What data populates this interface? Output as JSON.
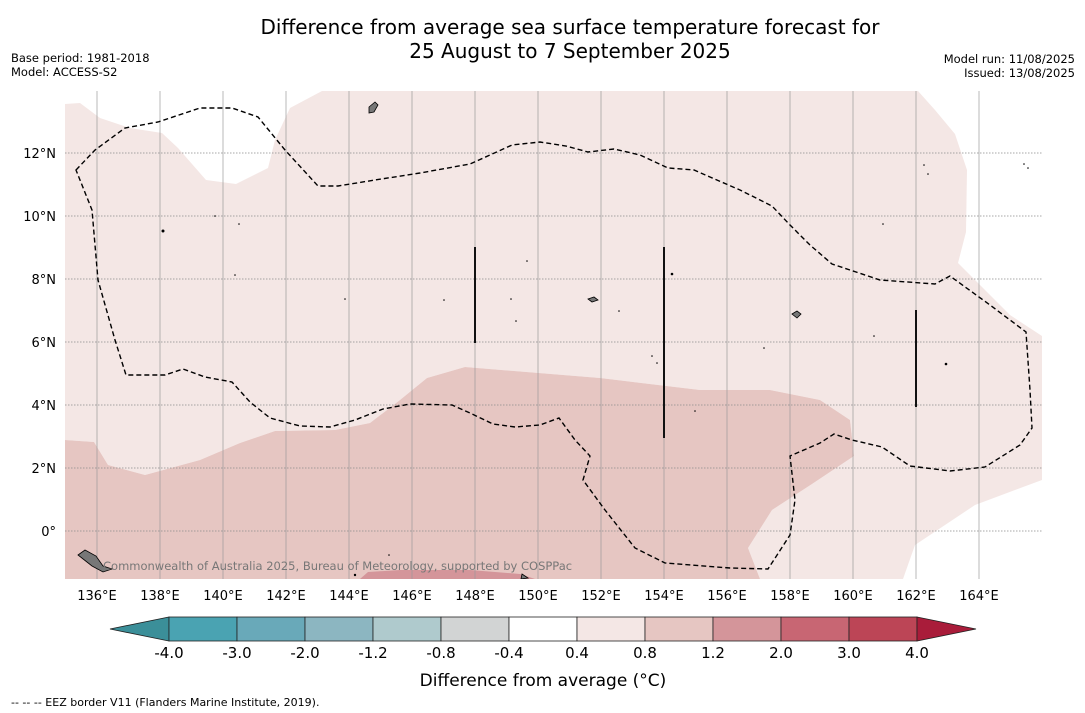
{
  "title_line1": "Difference from average sea surface temperature forecast for",
  "title_line2": "25 August to 7 September 2025",
  "base_period": "Base period: 1981-2018",
  "model": "Model: ACCESS-S2",
  "model_run": "Model run: 11/08/2025",
  "issued": "Issued: 13/08/2025",
  "copyright": "Commonwealth of Australia 2025, Bureau of Meteorology, supported by COSPPac",
  "footer_legend": "--  --  -- EEZ border V11 (Flanders Marine Institute, 2019).",
  "lon_labels": [
    "136°E",
    "138°E",
    "140°E",
    "142°E",
    "144°E",
    "146°E",
    "148°E",
    "150°E",
    "152°E",
    "154°E",
    "156°E",
    "158°E",
    "160°E",
    "162°E",
    "164°E"
  ],
  "lat_labels": [
    "12°N",
    "10°N",
    "8°N",
    "6°N",
    "4°N",
    "2°N",
    "0°"
  ],
  "colorbar": {
    "title": "Difference from average (°C)",
    "ticks": [
      "-4.0",
      "-3.0",
      "-2.0",
      "-1.2",
      "-0.8",
      "-0.4",
      "0.4",
      "0.8",
      "1.2",
      "2.0",
      "3.0",
      "4.0"
    ],
    "colors": [
      "#3b8f99",
      "#4aa3b2",
      "#69a9b9",
      "#8cb6c1",
      "#afcacd",
      "#d2d4d4",
      "#ffffff",
      "#f4e7e5",
      "#e6c6c2",
      "#d4959a",
      "#c86673",
      "#bc4556",
      "#a91c3a"
    ]
  },
  "map_fill_colors": {
    "light": "#f4e7e5",
    "medium": "#e6c6c2",
    "strong": "#d4959a"
  }
}
